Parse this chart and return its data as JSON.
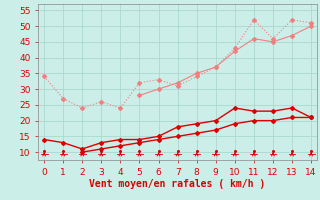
{
  "x": [
    0,
    1,
    2,
    3,
    4,
    5,
    6,
    7,
    8,
    9,
    10,
    11,
    12,
    13,
    14
  ],
  "line1_light": [
    34,
    27,
    24,
    26,
    24,
    32,
    33,
    31,
    34,
    37,
    43,
    52,
    46,
    52,
    51
  ],
  "line2_light_x": [
    5,
    6,
    7,
    8,
    9,
    10,
    11,
    12,
    13,
    14
  ],
  "line2_light_y": [
    28,
    30,
    32,
    35,
    37,
    42,
    46,
    45,
    47,
    50
  ],
  "line3_dark": [
    14,
    13,
    11,
    13,
    14,
    14,
    15,
    18,
    19,
    20,
    24,
    23,
    23,
    24,
    21
  ],
  "line4_dark_x": [
    2,
    3,
    4,
    5,
    6,
    7,
    8,
    9,
    10,
    11,
    12,
    13,
    14
  ],
  "line4_dark_y": [
    10,
    11,
    12,
    13,
    14,
    15,
    16,
    17,
    19,
    20,
    20,
    21,
    21
  ],
  "color_light": "#f08080",
  "color_dark": "#dd0000",
  "bg_color": "#cceee8",
  "grid_color": "#aad8d0",
  "xlabel": "Vent moyen/en rafales ( km/h )",
  "xlim": [
    -0.3,
    14.3
  ],
  "ylim": [
    7.5,
    57
  ],
  "yticks": [
    10,
    15,
    20,
    25,
    30,
    35,
    40,
    45,
    50,
    55
  ],
  "xticks": [
    0,
    1,
    2,
    3,
    4,
    5,
    6,
    7,
    8,
    9,
    10,
    11,
    12,
    13,
    14
  ],
  "axis_fontsize": 7,
  "tick_fontsize": 6.5
}
